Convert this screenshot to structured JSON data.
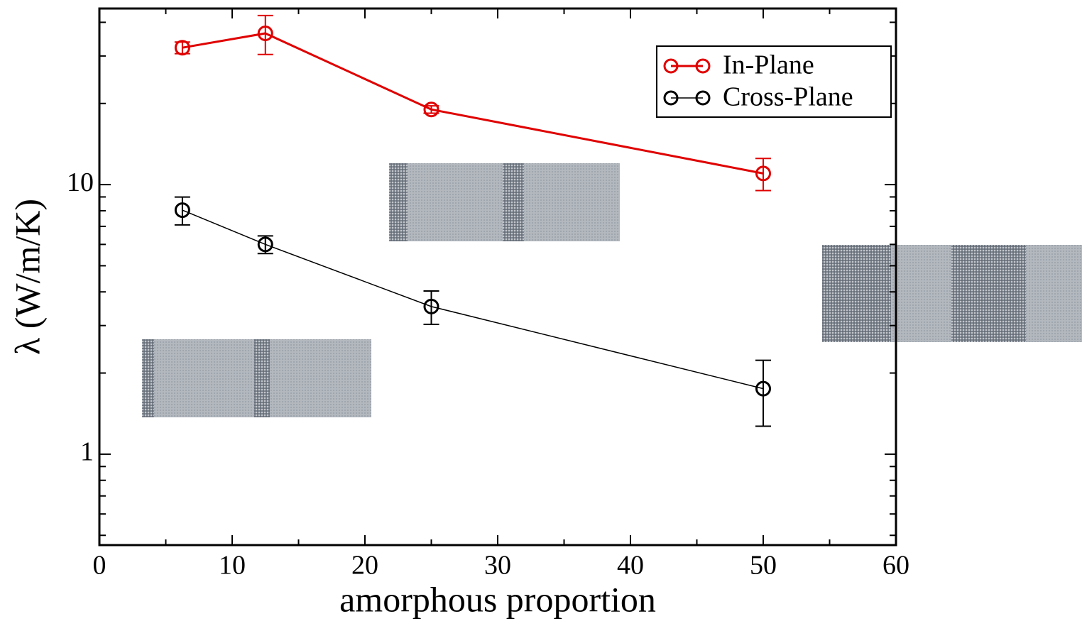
{
  "chart_data": {
    "type": "line",
    "x_label": "amorphous proportion",
    "y_label": "λ (W/m/K)",
    "log_y": true,
    "xlim": [
      0,
      60
    ],
    "xticks": [
      0,
      10,
      20,
      30,
      40,
      50,
      60
    ],
    "xminorticks": [
      5,
      15,
      25,
      35,
      45,
      55
    ],
    "ylim": [
      0.46,
      45
    ],
    "yticks": [
      1,
      10
    ],
    "yminorticks": [
      0.5,
      0.6,
      0.7,
      0.8,
      0.9,
      2,
      3,
      4,
      5,
      6,
      7,
      8,
      9,
      20,
      30,
      40
    ],
    "legend": "upper right",
    "x": [
      6.25,
      12.5,
      25,
      50
    ],
    "series": [
      {
        "name": "In-Plane",
        "color": "#e00000",
        "values": [
          32.2,
          36.4,
          19.0,
          11.0
        ],
        "errors": [
          1.6,
          6.0,
          0.6,
          1.5
        ]
      },
      {
        "name": "Cross-Plane",
        "color": "#000000",
        "values": [
          8.04,
          6.0,
          3.53,
          1.75
        ],
        "errors": [
          0.95,
          0.45,
          0.5,
          0.48
        ]
      }
    ]
  }
}
